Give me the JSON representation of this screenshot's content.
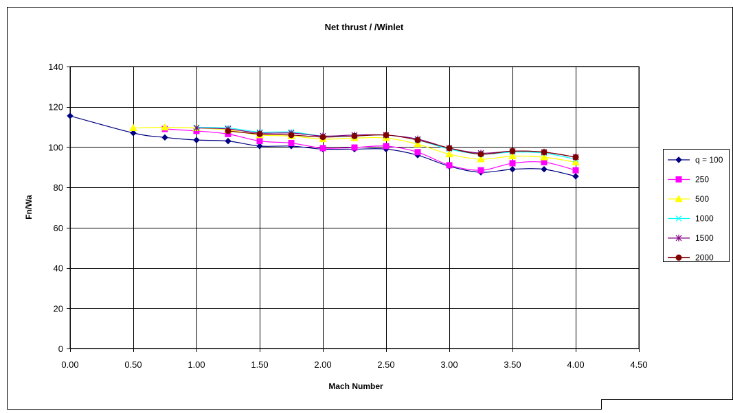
{
  "chart_data": {
    "type": "line",
    "title": "Net thrust / /Winlet",
    "xlabel": "Mach Number",
    "ylabel": "Fn/Wa",
    "xlim": [
      0,
      4.5
    ],
    "ylim": [
      0,
      140
    ],
    "x_ticks": [
      "0.00",
      "0.50",
      "1.00",
      "1.50",
      "2.00",
      "2.50",
      "3.00",
      "3.50",
      "4.00",
      "4.50"
    ],
    "y_ticks": [
      "0",
      "20",
      "40",
      "60",
      "80",
      "100",
      "120",
      "140"
    ],
    "grid": true,
    "legend_position": "right",
    "series": [
      {
        "name": "q = 100",
        "color": "#000080",
        "marker": "diamond",
        "points": [
          [
            0,
            115.5
          ],
          [
            0.5,
            107
          ],
          [
            0.75,
            104.8
          ],
          [
            1.0,
            103.5
          ],
          [
            1.25,
            103
          ],
          [
            1.5,
            100.5
          ],
          [
            1.75,
            100.5
          ],
          [
            2.0,
            99
          ],
          [
            2.25,
            99
          ],
          [
            2.5,
            99
          ],
          [
            2.75,
            96
          ],
          [
            3.0,
            90.5
          ],
          [
            3.25,
            87.5
          ],
          [
            3.5,
            89
          ],
          [
            3.75,
            89
          ],
          [
            4.0,
            85.5
          ]
        ]
      },
      {
        "name": "250",
        "color": "#ff00ff",
        "marker": "square",
        "points": [
          [
            0.75,
            109
          ],
          [
            1.0,
            108
          ],
          [
            1.25,
            106.5
          ],
          [
            1.5,
            103
          ],
          [
            1.75,
            102
          ],
          [
            2.0,
            99.5
          ],
          [
            2.25,
            99.8
          ],
          [
            2.5,
            100.5
          ],
          [
            2.75,
            97.5
          ],
          [
            3.0,
            91
          ],
          [
            3.25,
            88.5
          ],
          [
            3.5,
            92
          ],
          [
            3.75,
            92.5
          ],
          [
            4.0,
            88.5
          ]
        ]
      },
      {
        "name": "500",
        "color": "#ffff00",
        "marker": "triangle",
        "points": [
          [
            0.5,
            109.5
          ],
          [
            0.75,
            109.8
          ],
          [
            1.0,
            109.5
          ],
          [
            1.25,
            108.5
          ],
          [
            1.5,
            106
          ],
          [
            1.75,
            105.5
          ],
          [
            2.0,
            104
          ],
          [
            2.25,
            104.5
          ],
          [
            2.5,
            104.5
          ],
          [
            2.75,
            101.5
          ],
          [
            3.0,
            96.5
          ],
          [
            3.25,
            94
          ],
          [
            3.5,
            95.5
          ],
          [
            3.75,
            95
          ],
          [
            4.0,
            92.5
          ]
        ]
      },
      {
        "name": "1000",
        "color": "#00ffff",
        "marker": "x",
        "points": [
          [
            1.0,
            109.8
          ],
          [
            1.25,
            109.5
          ],
          [
            1.5,
            107.5
          ],
          [
            1.75,
            107.5
          ],
          [
            2.0,
            105.5
          ],
          [
            2.25,
            105.5
          ],
          [
            2.5,
            106
          ],
          [
            2.75,
            103.5
          ],
          [
            3.0,
            99
          ],
          [
            3.25,
            96.5
          ],
          [
            3.5,
            97.5
          ],
          [
            3.75,
            97
          ],
          [
            4.0,
            94
          ]
        ]
      },
      {
        "name": "1500",
        "color": "#800080",
        "marker": "star",
        "points": [
          [
            1.0,
            109.5
          ],
          [
            1.25,
            109
          ],
          [
            1.5,
            107
          ],
          [
            1.75,
            107
          ],
          [
            2.0,
            105.5
          ],
          [
            2.25,
            106
          ],
          [
            2.5,
            106
          ],
          [
            2.75,
            104
          ],
          [
            3.0,
            99.5
          ],
          [
            3.25,
            97
          ],
          [
            3.5,
            98
          ],
          [
            3.75,
            97.5
          ],
          [
            4.0,
            95
          ]
        ]
      },
      {
        "name": "2000",
        "color": "#800000",
        "marker": "circle",
        "points": [
          [
            1.25,
            108
          ],
          [
            1.5,
            106.5
          ],
          [
            1.75,
            106
          ],
          [
            2.0,
            105
          ],
          [
            2.25,
            105.5
          ],
          [
            2.5,
            106
          ],
          [
            2.75,
            103.5
          ],
          [
            3.0,
            99.5
          ],
          [
            3.25,
            96.5
          ],
          [
            3.5,
            98
          ],
          [
            3.75,
            97.5
          ],
          [
            4.0,
            95
          ]
        ]
      }
    ]
  }
}
